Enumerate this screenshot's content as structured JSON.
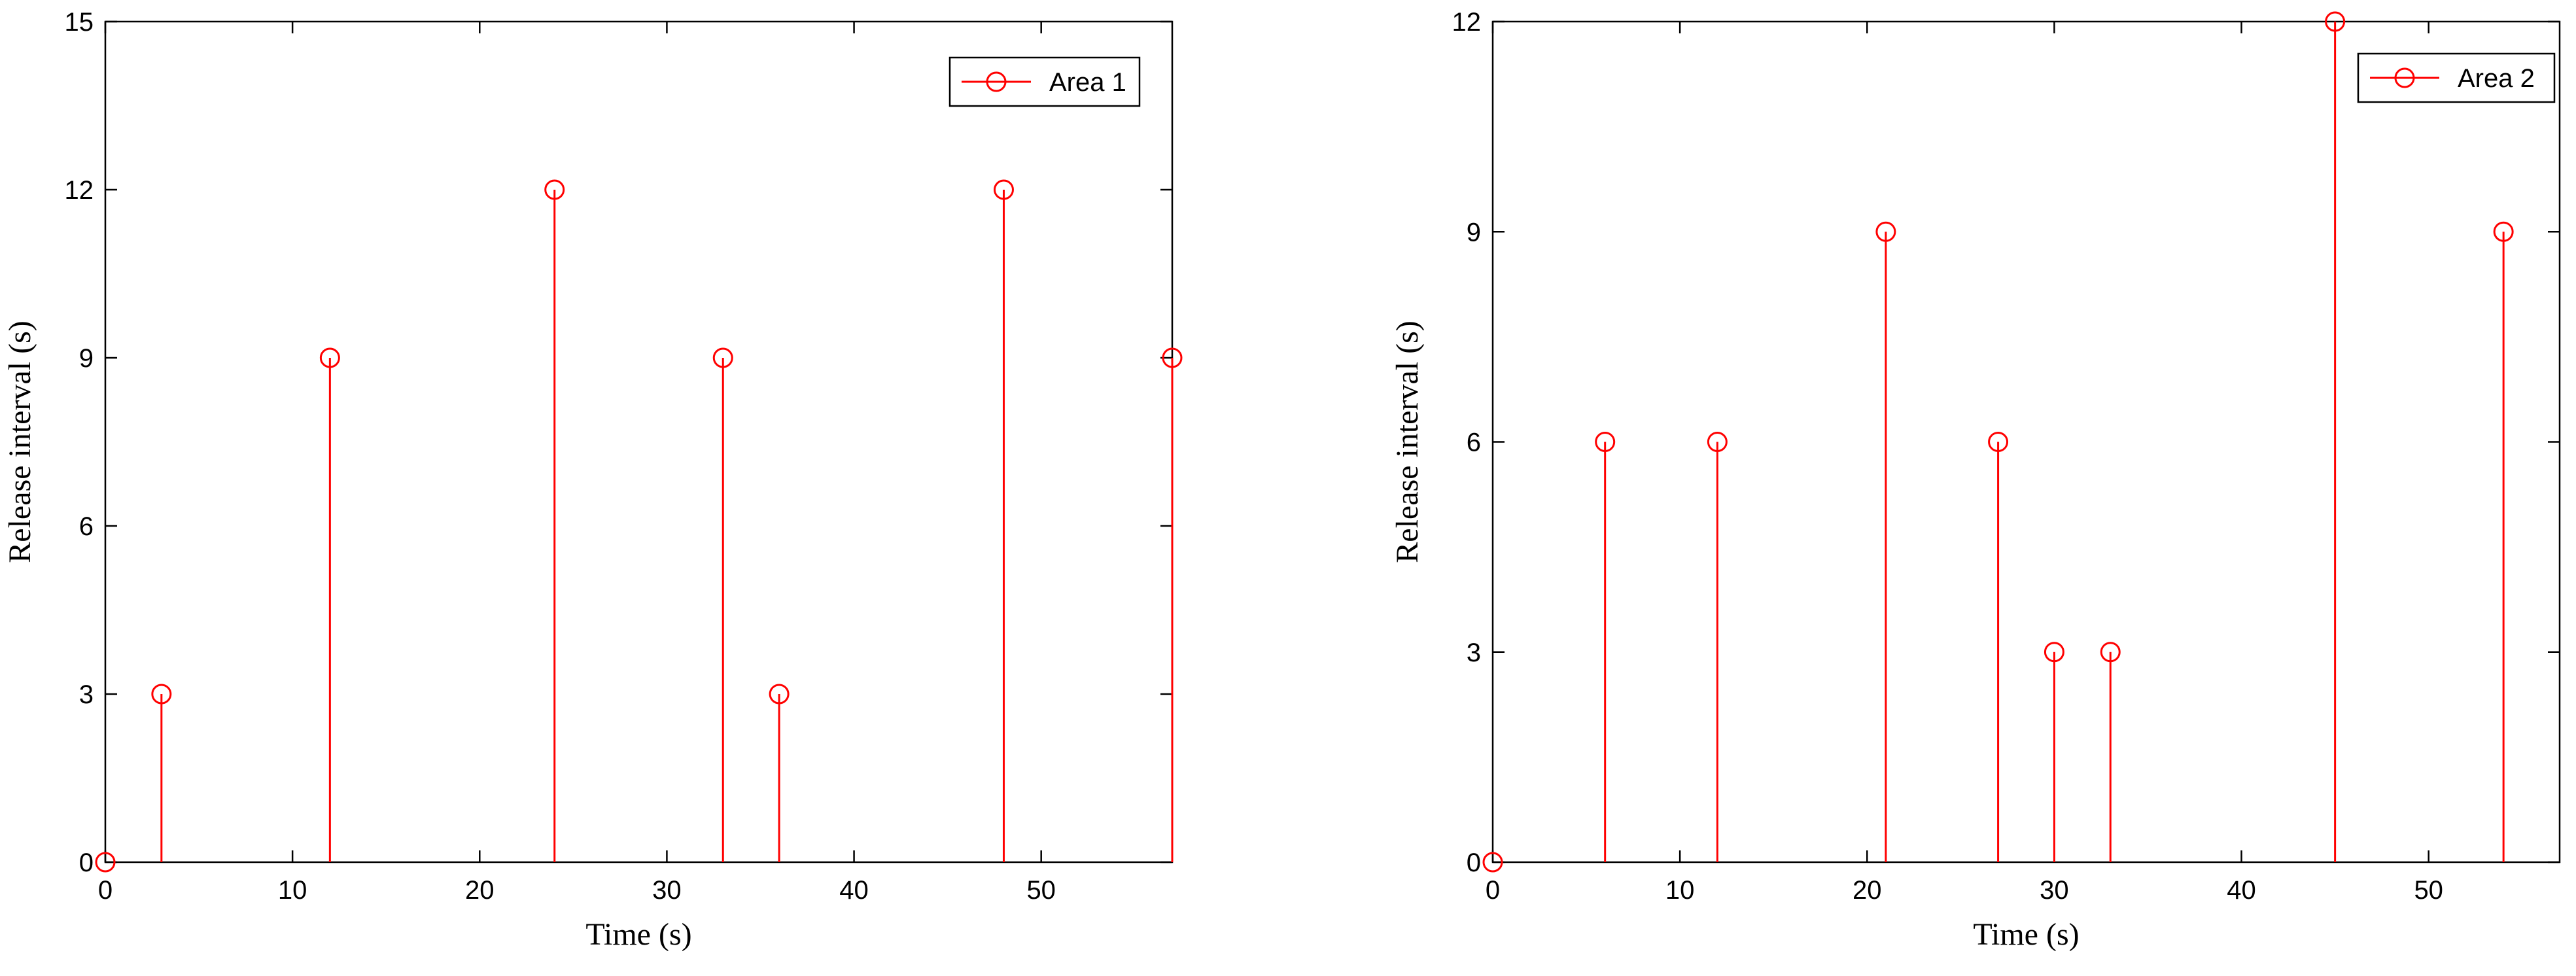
{
  "chart_data": [
    {
      "type": "stem",
      "xlabel": "Time (s)",
      "ylabel": "Release interval (s)",
      "xlim": [
        0,
        57
      ],
      "ylim": [
        0,
        15
      ],
      "xticks": [
        0,
        10,
        20,
        30,
        40,
        50
      ],
      "yticks": [
        0,
        3,
        6,
        9,
        12,
        15
      ],
      "legend_position": "top-right",
      "series": [
        {
          "name": "Area 1",
          "color": "#ff0000",
          "marker": "circle",
          "x": [
            0,
            3,
            12,
            24,
            33,
            36,
            48,
            57
          ],
          "y": [
            0,
            3,
            9,
            12,
            9,
            3,
            12,
            9
          ]
        }
      ]
    },
    {
      "type": "stem",
      "xlabel": "Time (s)",
      "ylabel": "Release interval (s)",
      "xlim": [
        0,
        57
      ],
      "ylim": [
        0,
        12
      ],
      "xticks": [
        0,
        10,
        20,
        30,
        40,
        50
      ],
      "yticks": [
        0,
        3,
        6,
        9,
        12
      ],
      "legend_position": "top-right",
      "series": [
        {
          "name": "Area 2",
          "color": "#ff0000",
          "marker": "circle",
          "x": [
            0,
            6,
            12,
            21,
            27,
            30,
            33,
            45,
            54
          ],
          "y": [
            0,
            6,
            6,
            9,
            6,
            3,
            3,
            12,
            9
          ]
        }
      ]
    }
  ]
}
